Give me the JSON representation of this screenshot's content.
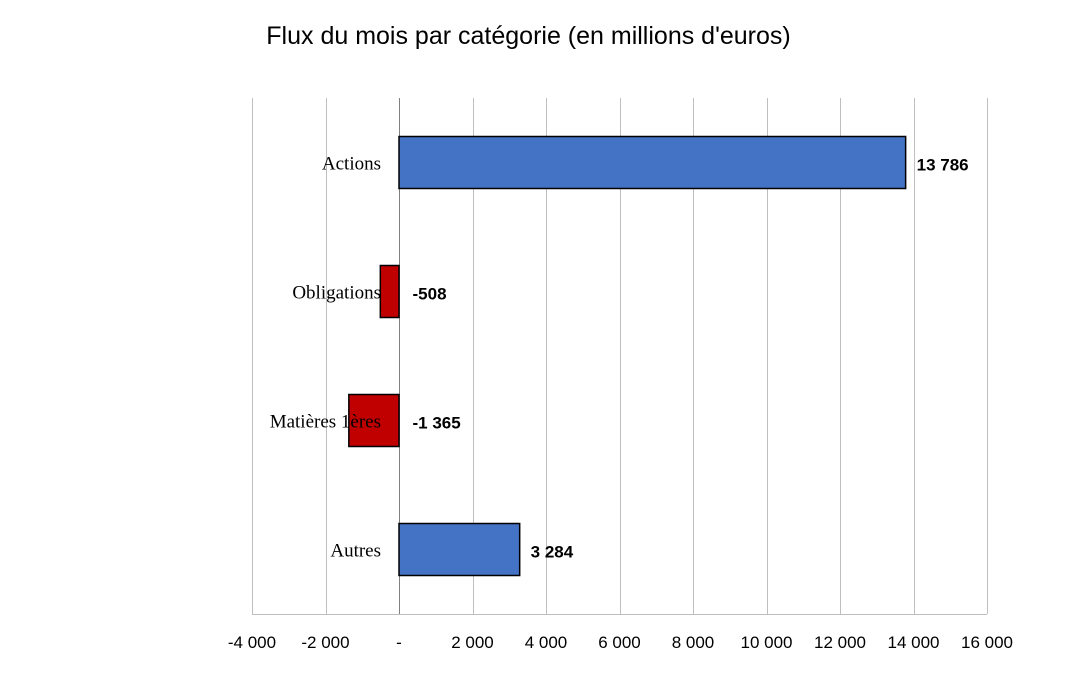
{
  "chart_data": {
    "type": "bar",
    "orientation": "horizontal",
    "title": "Flux du mois par catégorie (en millions d'euros)",
    "xlabel": "",
    "ylabel": "",
    "categories": [
      "Actions",
      "Obligations",
      "Matières 1ères",
      "Autres"
    ],
    "values": [
      13786,
      -508,
      -1365,
      3284
    ],
    "value_labels": [
      "13 786",
      "-508",
      "-1 365",
      "3 284"
    ],
    "xlim": [
      -4000,
      16000
    ],
    "x_ticks": [
      -4000,
      -2000,
      0,
      2000,
      4000,
      6000,
      8000,
      10000,
      12000,
      14000,
      16000
    ],
    "x_tick_labels": [
      "-4 000",
      "-2 000",
      "-",
      "2 000",
      "4 000",
      "6 000",
      "8 000",
      "10 000",
      "12 000",
      "14 000",
      "16 000"
    ],
    "grid": "vertical",
    "legend": "none",
    "colors": {
      "positive": "#4472C4",
      "negative": "#C00000",
      "bar_border": "#000000",
      "grid": "#BFBFBF"
    }
  }
}
